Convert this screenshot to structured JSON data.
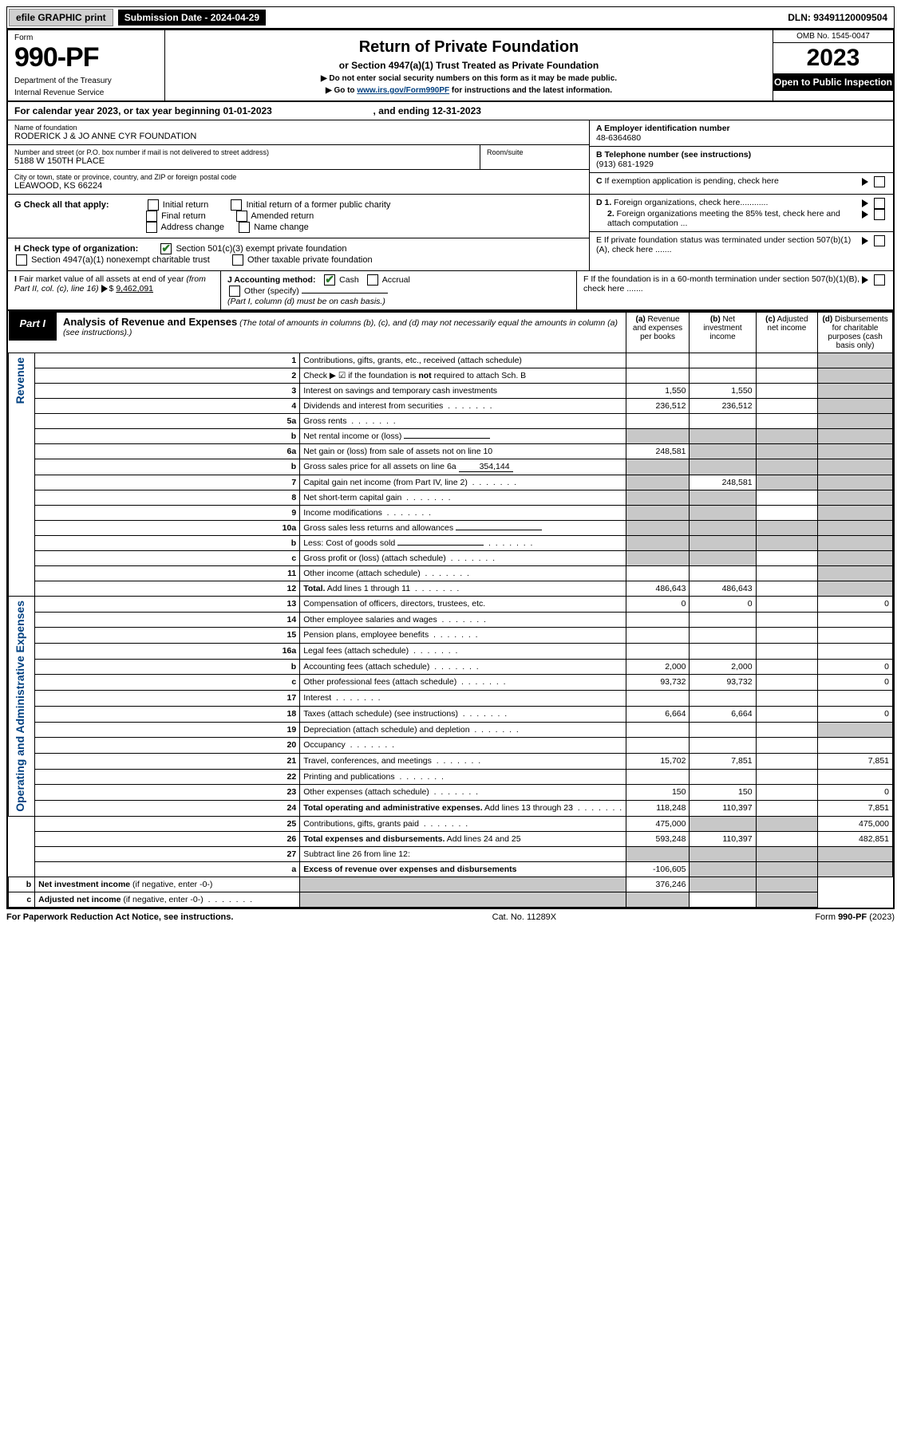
{
  "top_bar": {
    "efile": "efile GRAPHIC print",
    "submission_label": "Submission Date - 2024-04-29",
    "dln": "DLN: 93491120009504"
  },
  "header": {
    "form_label": "Form",
    "form_number": "990-PF",
    "dept1": "Department of the Treasury",
    "dept2": "Internal Revenue Service",
    "title": "Return of Private Foundation",
    "subtitle": "or Section 4947(a)(1) Trust Treated as Private Foundation",
    "instr1": "▶ Do not enter social security numbers on this form as it may be made public.",
    "instr2_pre": "▶ Go to ",
    "instr2_link": "www.irs.gov/Form990PF",
    "instr2_post": " for instructions and the latest information.",
    "omb": "OMB No. 1545-0047",
    "year": "2023",
    "inspection": "Open to Public Inspection"
  },
  "calendar_year": {
    "prefix": "For calendar year 2023, or tax year beginning ",
    "begin": "01-01-2023",
    "middle": ", and ending ",
    "end": "12-31-2023"
  },
  "info": {
    "name_label": "Name of foundation",
    "name": "RODERICK J & JO ANNE CYR FOUNDATION",
    "addr_label": "Number and street (or P.O. box number if mail is not delivered to street address)",
    "addr": "5188 W 150TH PLACE",
    "room_label": "Room/suite",
    "city_label": "City or town, state or province, country, and ZIP or foreign postal code",
    "city": "LEAWOOD, KS  66224",
    "A_label": "A Employer identification number",
    "A_value": "48-6364680",
    "B_label": "B Telephone number (see instructions)",
    "B_value": "(913) 681-1929",
    "C_label": "C If exemption application is pending, check here",
    "D1": "D 1. Foreign organizations, check here............",
    "D2": "2. Foreign organizations meeting the 85% test, check here and attach computation ...",
    "E": "E  If private foundation status was terminated under section 507(b)(1)(A), check here .......",
    "F": "F  If the foundation is in a 60-month termination under section 507(b)(1)(B), check here .......",
    "G_label": "G Check all that apply:",
    "G_opts": [
      "Initial return",
      "Initial return of a former public charity",
      "Final return",
      "Amended return",
      "Address change",
      "Name change"
    ],
    "H_label": "H Check type of organization:",
    "H1": "Section 501(c)(3) exempt private foundation",
    "H2": "Section 4947(a)(1) nonexempt charitable trust",
    "H3": "Other taxable private foundation",
    "I_label": "I Fair market value of all assets at end of year (from Part II, col. (c), line 16) ",
    "I_value": "9,462,091",
    "J_label": "J Accounting method:",
    "J1": "Cash",
    "J2": "Accrual",
    "J3": "Other (specify)",
    "J_note": "(Part I, column (d) must be on cash basis.)"
  },
  "part1": {
    "label": "Part I",
    "title": "Analysis of Revenue and Expenses",
    "title_note": "(The total of amounts in columns (b), (c), and (d) may not necessarily equal the amounts in column (a) (see instructions).)",
    "col_a": "(a) Revenue and expenses per books",
    "col_b": "(b) Net investment income",
    "col_c": "(c) Adjusted net income",
    "col_d": "(d) Disbursements for charitable purposes (cash basis only)"
  },
  "sections": {
    "revenue": "Revenue",
    "expenses": "Operating and Administrative Expenses"
  },
  "rows": [
    {
      "n": "1",
      "desc": "Contributions, gifts, grants, etc., received (attach schedule)",
      "a": "",
      "b": "",
      "c": "",
      "d": "",
      "dgrey": true
    },
    {
      "n": "2",
      "desc": "Check ▶ ☑ if the foundation is <b>not</b> required to attach Sch. B",
      "a": "",
      "b": "",
      "c": "",
      "d": "",
      "dgrey": true,
      "dotsrow": true
    },
    {
      "n": "3",
      "desc": "Interest on savings and temporary cash investments",
      "a": "1,550",
      "b": "1,550",
      "c": "",
      "d": "",
      "dgrey": true
    },
    {
      "n": "4",
      "desc": "Dividends and interest from securities",
      "a": "236,512",
      "b": "236,512",
      "c": "",
      "d": "",
      "dots": true,
      "dgrey": true
    },
    {
      "n": "5a",
      "desc": "Gross rents",
      "a": "",
      "b": "",
      "c": "",
      "d": "",
      "dots": true,
      "dgrey": true
    },
    {
      "n": "b",
      "desc": "Net rental income or (loss)",
      "a": "",
      "b": "",
      "c": "",
      "d": "",
      "bgrey": true,
      "cgrey": true,
      "dgrey": true,
      "agrey": true,
      "inline": true
    },
    {
      "n": "6a",
      "desc": "Net gain or (loss) from sale of assets not on line 10",
      "a": "248,581",
      "b": "",
      "c": "",
      "d": "",
      "bgrey": true,
      "cgrey": true,
      "dgrey": true
    },
    {
      "n": "b",
      "desc": "Gross sales price for all assets on line 6a",
      "inline_val": "354,144",
      "a": "",
      "b": "",
      "c": "",
      "d": "",
      "agrey": true,
      "bgrey": true,
      "cgrey": true,
      "dgrey": true
    },
    {
      "n": "7",
      "desc": "Capital gain net income (from Part IV, line 2)",
      "a": "",
      "b": "248,581",
      "c": "",
      "d": "",
      "dots": true,
      "agrey": true,
      "cgrey": true,
      "dgrey": true
    },
    {
      "n": "8",
      "desc": "Net short-term capital gain",
      "a": "",
      "b": "",
      "c": "",
      "d": "",
      "dots": true,
      "agrey": true,
      "bgrey": true,
      "dgrey": true
    },
    {
      "n": "9",
      "desc": "Income modifications",
      "a": "",
      "b": "",
      "c": "",
      "d": "",
      "dots": true,
      "agrey": true,
      "bgrey": true,
      "dgrey": true
    },
    {
      "n": "10a",
      "desc": "Gross sales less returns and allowances",
      "a": "",
      "b": "",
      "c": "",
      "d": "",
      "inline": true,
      "agrey": true,
      "bgrey": true,
      "cgrey": true,
      "dgrey": true
    },
    {
      "n": "b",
      "desc": "Less: Cost of goods sold",
      "a": "",
      "b": "",
      "c": "",
      "d": "",
      "dots": true,
      "inline": true,
      "agrey": true,
      "bgrey": true,
      "cgrey": true,
      "dgrey": true
    },
    {
      "n": "c",
      "desc": "Gross profit or (loss) (attach schedule)",
      "a": "",
      "b": "",
      "c": "",
      "d": "",
      "dots": true,
      "agrey": true,
      "bgrey": true,
      "dgrey": true
    },
    {
      "n": "11",
      "desc": "Other income (attach schedule)",
      "a": "",
      "b": "",
      "c": "",
      "d": "",
      "dots": true,
      "dgrey": true
    },
    {
      "n": "12",
      "desc": "<b>Total.</b> Add lines 1 through 11",
      "a": "486,643",
      "b": "486,643",
      "c": "",
      "d": "",
      "dots": true,
      "dgrey": true
    },
    {
      "n": "13",
      "desc": "Compensation of officers, directors, trustees, etc.",
      "a": "0",
      "b": "0",
      "c": "",
      "d": "0"
    },
    {
      "n": "14",
      "desc": "Other employee salaries and wages",
      "a": "",
      "b": "",
      "c": "",
      "d": "",
      "dots": true
    },
    {
      "n": "15",
      "desc": "Pension plans, employee benefits",
      "a": "",
      "b": "",
      "c": "",
      "d": "",
      "dots": true
    },
    {
      "n": "16a",
      "desc": "Legal fees (attach schedule)",
      "a": "",
      "b": "",
      "c": "",
      "d": "",
      "dots": true
    },
    {
      "n": "b",
      "desc": "Accounting fees (attach schedule)",
      "a": "2,000",
      "b": "2,000",
      "c": "",
      "d": "0",
      "dots": true
    },
    {
      "n": "c",
      "desc": "Other professional fees (attach schedule)",
      "a": "93,732",
      "b": "93,732",
      "c": "",
      "d": "0",
      "dots": true
    },
    {
      "n": "17",
      "desc": "Interest",
      "a": "",
      "b": "",
      "c": "",
      "d": "",
      "dots": true
    },
    {
      "n": "18",
      "desc": "Taxes (attach schedule) (see instructions)",
      "a": "6,664",
      "b": "6,664",
      "c": "",
      "d": "0",
      "dots": true
    },
    {
      "n": "19",
      "desc": "Depreciation (attach schedule) and depletion",
      "a": "",
      "b": "",
      "c": "",
      "d": "",
      "dots": true,
      "dgrey": true
    },
    {
      "n": "20",
      "desc": "Occupancy",
      "a": "",
      "b": "",
      "c": "",
      "d": "",
      "dots": true
    },
    {
      "n": "21",
      "desc": "Travel, conferences, and meetings",
      "a": "15,702",
      "b": "7,851",
      "c": "",
      "d": "7,851",
      "dots": true
    },
    {
      "n": "22",
      "desc": "Printing and publications",
      "a": "",
      "b": "",
      "c": "",
      "d": "",
      "dots": true
    },
    {
      "n": "23",
      "desc": "Other expenses (attach schedule)",
      "a": "150",
      "b": "150",
      "c": "",
      "d": "0",
      "dots": true
    },
    {
      "n": "24",
      "desc": "<b>Total operating and administrative expenses.</b> Add lines 13 through 23",
      "a": "118,248",
      "b": "110,397",
      "c": "",
      "d": "7,851",
      "dots": true
    },
    {
      "n": "25",
      "desc": "Contributions, gifts, grants paid",
      "a": "475,000",
      "b": "",
      "c": "",
      "d": "475,000",
      "dots": true,
      "bgrey": true,
      "cgrey": true
    },
    {
      "n": "26",
      "desc": "<b>Total expenses and disbursements.</b> Add lines 24 and 25",
      "a": "593,248",
      "b": "110,397",
      "c": "",
      "d": "482,851"
    },
    {
      "n": "27",
      "desc": "Subtract line 26 from line 12:",
      "a": "",
      "b": "",
      "c": "",
      "d": "",
      "agrey": true,
      "bgrey": true,
      "cgrey": true,
      "dgrey": true
    },
    {
      "n": "a",
      "desc": "<b>Excess of revenue over expenses and disbursements</b>",
      "a": "-106,605",
      "b": "",
      "c": "",
      "d": "",
      "bgrey": true,
      "cgrey": true,
      "dgrey": true
    },
    {
      "n": "b",
      "desc": "<b>Net investment income</b> (if negative, enter -0-)",
      "a": "",
      "b": "376,246",
      "c": "",
      "d": "",
      "agrey": true,
      "cgrey": true,
      "dgrey": true
    },
    {
      "n": "c",
      "desc": "<b>Adjusted net income</b> (if negative, enter -0-)",
      "a": "",
      "b": "",
      "c": "",
      "d": "",
      "dots": true,
      "agrey": true,
      "bgrey": true,
      "dgrey": true
    }
  ],
  "footer": {
    "left": "For Paperwork Reduction Act Notice, see instructions.",
    "center": "Cat. No. 11289X",
    "right": "Form 990-PF (2023)"
  }
}
